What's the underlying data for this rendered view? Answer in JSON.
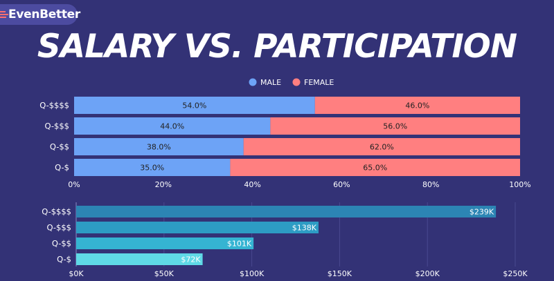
{
  "brand": {
    "name": "EvenBetter"
  },
  "header": {
    "title": "SALARY VS. PARTICIPATION"
  },
  "colors": {
    "male": "#6da3f6",
    "female": "#ff7f80",
    "salary_bars": [
      "#2c85b4",
      "#2d9cc4",
      "#35b4d2",
      "#5fd9e6"
    ],
    "label_text": "#ffffff",
    "in_bar_text": "#222222"
  },
  "chart_data": [
    {
      "type": "bar",
      "orientation": "horizontal",
      "stacked": true,
      "title": "",
      "categories": [
        "Q-$$$$",
        "Q-$$$",
        "Q-$$",
        "Q-$"
      ],
      "series": [
        {
          "name": "MALE",
          "values": [
            54.0,
            44.0,
            38.0,
            35.0
          ]
        },
        {
          "name": "FEMALE",
          "values": [
            46.0,
            56.0,
            62.0,
            65.0
          ]
        }
      ],
      "data_labels": [
        [
          "54.0%",
          "44.0%",
          "38.0%",
          "35.0%"
        ],
        [
          "46.0%",
          "56.0%",
          "62.0%",
          "65.0%"
        ]
      ],
      "xlim": [
        0,
        100
      ],
      "x_ticks": [
        0,
        20,
        40,
        60,
        80,
        100
      ],
      "x_tick_labels": [
        "0%",
        "20%",
        "40%",
        "60%",
        "80%",
        "100%"
      ],
      "legend": "top"
    },
    {
      "type": "bar",
      "orientation": "horizontal",
      "title": "",
      "categories": [
        "Q-$$$$",
        "Q-$$$",
        "Q-$$",
        "Q-$"
      ],
      "values": [
        239000,
        138000,
        101000,
        72000
      ],
      "data_labels": [
        "$239K",
        "$138K",
        "$101K",
        "$72K"
      ],
      "xlim": [
        0,
        250000
      ],
      "x_ticks": [
        0,
        50000,
        100000,
        150000,
        200000,
        250000
      ],
      "x_tick_labels": [
        "$0K",
        "$50K",
        "$100K",
        "$150K",
        "$200K",
        "$250K"
      ],
      "grid": true
    }
  ]
}
